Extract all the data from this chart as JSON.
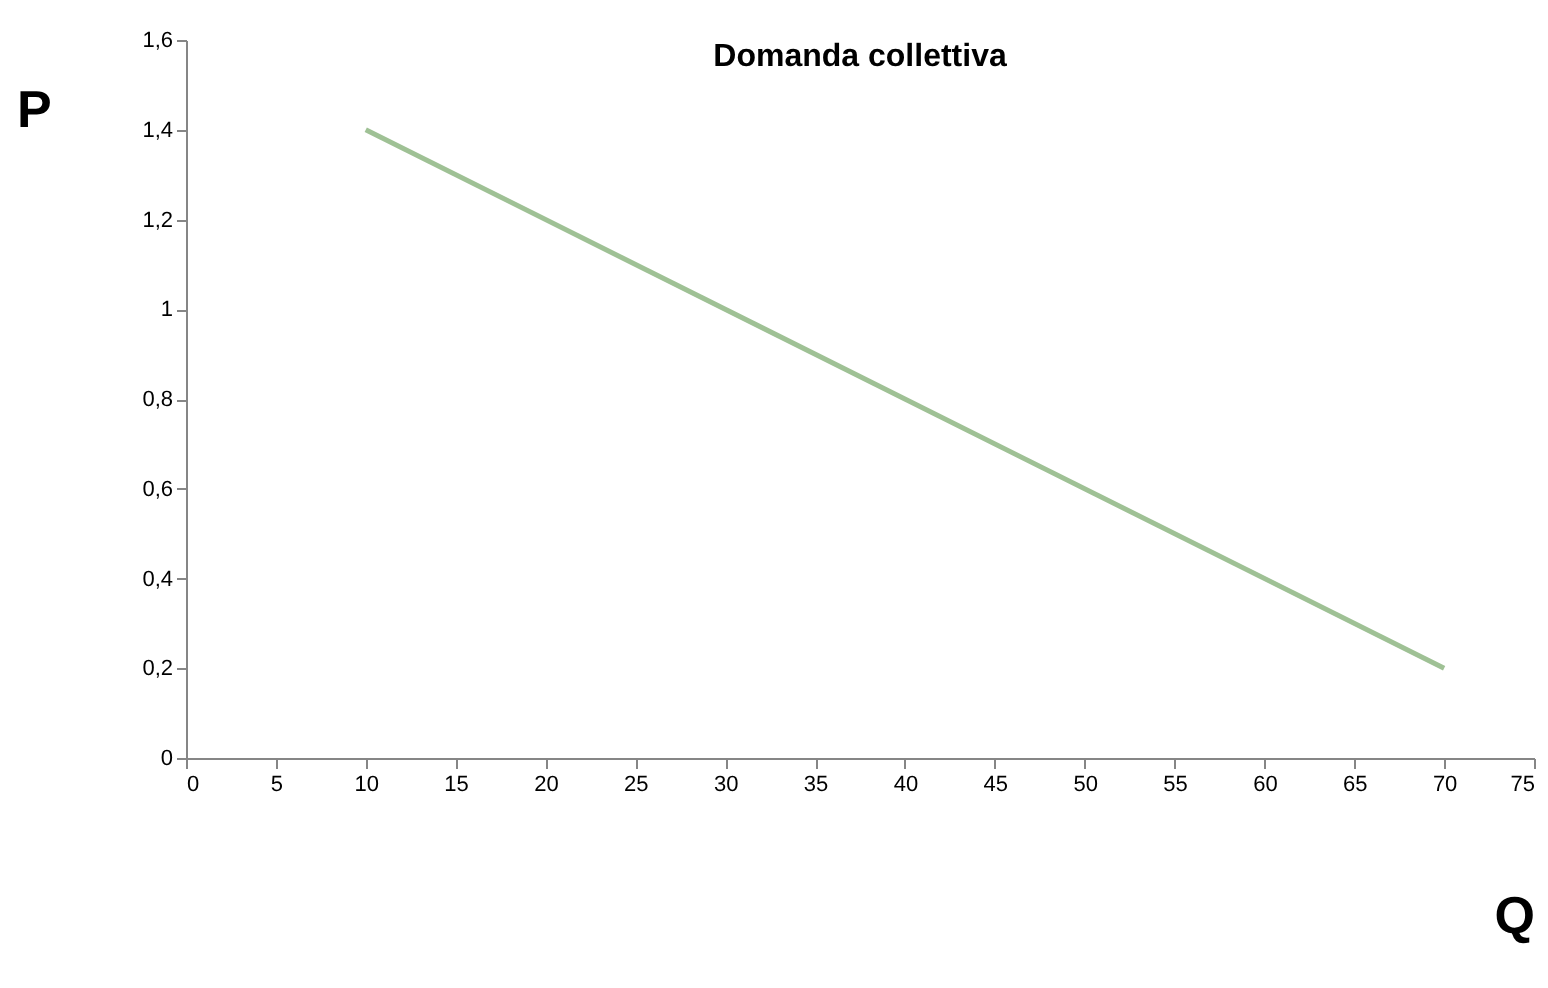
{
  "chart_data": {
    "type": "line",
    "title": "Domanda collettiva",
    "xlabel": "Q",
    "ylabel": "P",
    "x": [
      10,
      70
    ],
    "series": [
      {
        "color": "#9fc195",
        "values": [
          1.4,
          0.2
        ]
      }
    ],
    "xlim": [
      0,
      75
    ],
    "xticks": [
      0,
      5,
      10,
      15,
      20,
      25,
      30,
      35,
      40,
      45,
      50,
      55,
      60,
      65,
      70,
      75
    ],
    "ylim": [
      0,
      1.6
    ],
    "yticks": [
      0,
      {
        "value": 0.2,
        "label": "0,2"
      },
      {
        "value": 0.4,
        "label": "0,4"
      },
      {
        "value": 0.6,
        "label": "0,6"
      },
      {
        "value": 0.8,
        "label": "0,8"
      },
      1,
      {
        "value": 1.2,
        "label": "1,2"
      },
      {
        "value": 1.4,
        "label": "1,4"
      },
      {
        "value": 1.6,
        "label": "1,6"
      }
    ],
    "grid": false,
    "legend": false,
    "marker": "none",
    "line_style": "solid"
  }
}
